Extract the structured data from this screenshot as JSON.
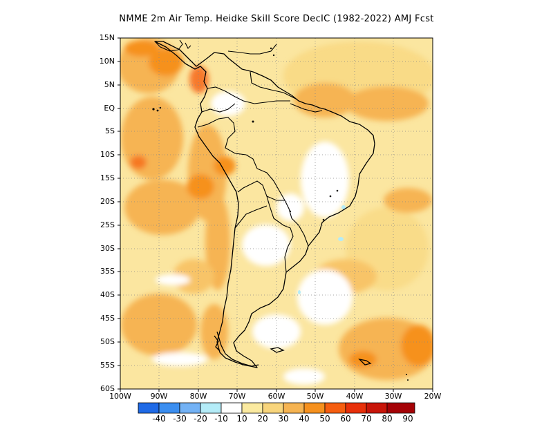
{
  "title": "NMME  2m Air Temp. Heidke Skill Score DecIC (1982-2022) AMJ Fcst",
  "map": {
    "lat_labels": [
      "15N",
      "10N",
      "5N",
      "EQ",
      "5S",
      "10S",
      "15S",
      "20S",
      "25S",
      "30S",
      "35S",
      "40S",
      "45S",
      "50S",
      "55S",
      "60S"
    ],
    "lon_labels": [
      "100W",
      "90W",
      "80W",
      "70W",
      "60W",
      "50W",
      "40W",
      "30W",
      "20W"
    ],
    "grid": "dotted",
    "region": "South America"
  },
  "colorbar": {
    "labels": [
      "-40",
      "-30",
      "-20",
      "-10",
      "10",
      "20",
      "30",
      "40",
      "50",
      "60",
      "70",
      "80",
      "90"
    ],
    "colors": [
      "#1f6ae6",
      "#3b8ef0",
      "#73b2f5",
      "#b4ecf8",
      "#ffffff",
      "#fbeaa0",
      "#f8d57c",
      "#f6b452",
      "#f6911e",
      "#f65e10",
      "#e8300a",
      "#c81509",
      "#a50206"
    ]
  }
}
